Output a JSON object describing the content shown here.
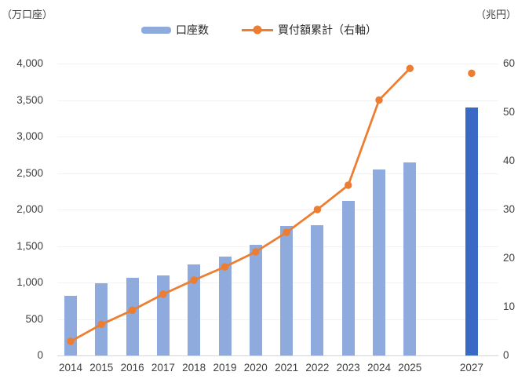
{
  "chart_data": {
    "type": "combo_bar_line",
    "title": "",
    "categories": [
      "2014",
      "2015",
      "2016",
      "2017",
      "2018",
      "2019",
      "2020",
      "2021",
      "2022",
      "2023",
      "2024",
      "2025",
      "2027"
    ],
    "series": [
      {
        "name": "口座数",
        "type": "bar",
        "axis": "left",
        "unit": "万口座",
        "values": [
          820,
          990,
          1060,
          1100,
          1250,
          1360,
          1520,
          1770,
          1790,
          2120,
          2550,
          2650,
          3400
        ]
      },
      {
        "name": "買付額累計（右軸）",
        "type": "line",
        "axis": "right",
        "unit": "兆円",
        "values": [
          2.9,
          6.4,
          9.3,
          12.6,
          15.5,
          18.2,
          21.3,
          25.3,
          30,
          35,
          52.5,
          59,
          58
        ]
      }
    ],
    "left_axis": {
      "title": "（万口座）",
      "min": 0,
      "max": 4000,
      "step": 500,
      "tick_labels": [
        "0",
        "500",
        "1,000",
        "1,500",
        "2,000",
        "2,500",
        "3,000",
        "3,500",
        "4,000"
      ]
    },
    "right_axis": {
      "title": "（兆円）",
      "min": 0,
      "max": 60,
      "step": 10,
      "tick_labels": [
        "0",
        "10",
        "20",
        "30",
        "40",
        "50",
        "60"
      ]
    },
    "notes": {
      "highlight_category": "2027",
      "detached_line_categories": [
        "2027"
      ],
      "missing_years": [
        "2026"
      ]
    },
    "colors": {
      "bar": "#8faadc",
      "bar_highlight": "#3a68c5",
      "line": "#ed7d31"
    },
    "legend_position": "top",
    "grid": true
  }
}
